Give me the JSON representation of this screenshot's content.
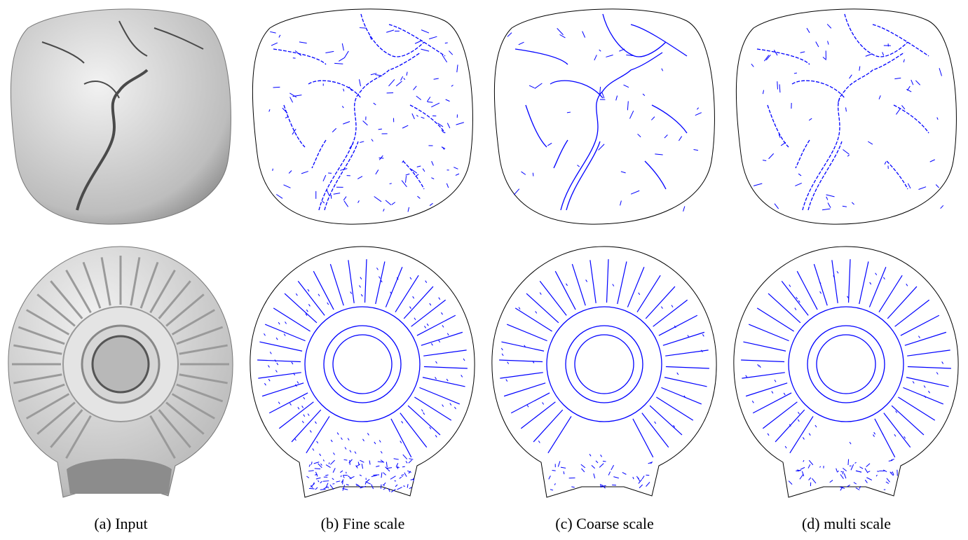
{
  "figure": {
    "captions": [
      {
        "id": "a",
        "text": "(a) Input"
      },
      {
        "id": "b",
        "text": "(b) Fine scale"
      },
      {
        "id": "c",
        "text": "(c) Coarse scale"
      },
      {
        "id": "d",
        "text": "(d) multi scale"
      }
    ],
    "rows": [
      "flat-seal",
      "round-lamp"
    ],
    "colors": {
      "render_shade": "#bdbdbd",
      "render_light": "#f2f2f2",
      "render_dark": "#4a4a4a",
      "outline": "#000000",
      "feature_lines": "#0000ff"
    }
  }
}
